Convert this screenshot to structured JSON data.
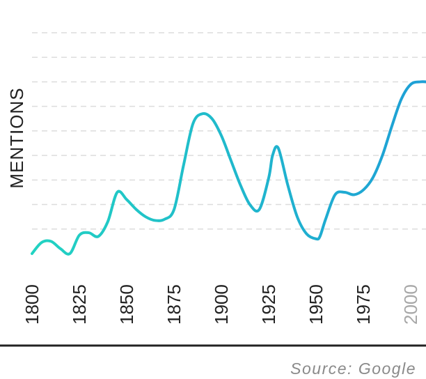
{
  "chart_data": {
    "type": "line",
    "ylabel": "MENTIONS",
    "xlabel": "",
    "source": "Source: Google",
    "x_ticks": [
      "1800",
      "1825",
      "1850",
      "1875",
      "1900",
      "1925",
      "1950",
      "1975",
      "2000"
    ],
    "highlight_tick": "2000",
    "grid": true,
    "xlim": [
      1800,
      2008
    ],
    "ylim": [
      0,
      9
    ],
    "colors": {
      "start": "#22d3c2",
      "end": "#1e9fd6",
      "highlight_tick": "#a8a8a8",
      "axis": "#222222"
    },
    "series": [
      {
        "x": [
          1800,
          1805,
          1810,
          1815,
          1820,
          1825,
          1830,
          1835,
          1840,
          1845,
          1850,
          1855,
          1860,
          1865,
          1870,
          1875,
          1880,
          1885,
          1890,
          1895,
          1900,
          1905,
          1910,
          1915,
          1920,
          1925,
          1927,
          1930,
          1935,
          1940,
          1945,
          1950,
          1952,
          1955,
          1960,
          1965,
          1970,
          1975,
          1980,
          1985,
          1990,
          1995,
          2000,
          2005,
          2008
        ],
        "values": [
          0.0,
          0.45,
          0.5,
          0.2,
          0.0,
          0.75,
          0.85,
          0.7,
          1.3,
          2.5,
          2.2,
          1.8,
          1.5,
          1.35,
          1.4,
          1.8,
          3.6,
          5.3,
          5.7,
          5.5,
          4.8,
          3.8,
          2.8,
          2.0,
          1.8,
          3.1,
          4.0,
          4.3,
          2.8,
          1.5,
          0.8,
          0.6,
          0.7,
          1.4,
          2.4,
          2.5,
          2.4,
          2.6,
          3.1,
          4.0,
          5.2,
          6.3,
          6.9,
          7.0,
          7.0
        ]
      }
    ]
  }
}
